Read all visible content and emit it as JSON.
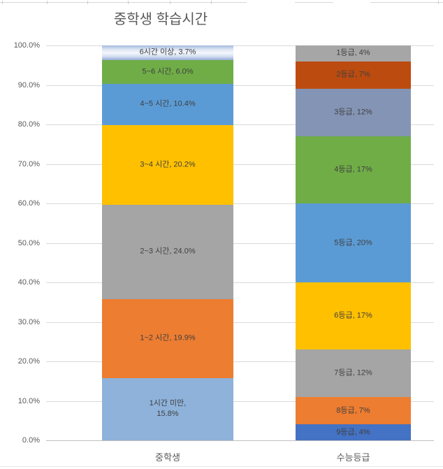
{
  "chart_data": {
    "type": "bar",
    "subtype": "stacked-100-percent-column",
    "title": "중학생 학습시간",
    "categories": [
      "중학생",
      "수능등급"
    ],
    "y_axis": {
      "min": 0,
      "max": 100,
      "step": 10,
      "tick_labels": [
        "0.0%",
        "10.0%",
        "20.0%",
        "30.0%",
        "40.0%",
        "50.0%",
        "60.0%",
        "70.0%",
        "80.0%",
        "90.0%",
        "100.0%"
      ]
    },
    "grid": "horizontal-on",
    "legend": "none",
    "bars": [
      {
        "category": "중학생",
        "segments": [
          {
            "name": "1시간 미만",
            "value": 15.8,
            "display": "1시간 미만,\n15.8%",
            "color": "#8eb2da"
          },
          {
            "name": "1~2 시간",
            "value": 19.9,
            "display": "1~2 시간, 19.9%",
            "color": "#ed7d31"
          },
          {
            "name": "2~3 시간",
            "value": 24.0,
            "display": "2~3 시간, 24.0%",
            "color": "#a5a5a5"
          },
          {
            "name": "3~4 시간",
            "value": 20.2,
            "display": "3~4 시간, 20.2%",
            "color": "#ffc000"
          },
          {
            "name": "4~5 시간",
            "value": 10.4,
            "display": "4~5 시간, 10.4%",
            "color": "#5b9bd5"
          },
          {
            "name": "5~6 시간",
            "value": 6.0,
            "display": "5~6 시간, 6.0%",
            "color": "#70ad47"
          },
          {
            "name": "6시간 이상",
            "value": 3.7,
            "display": "6시간 이상, 3.7%",
            "color": [
              "#a3b8de",
              "#d9e2f2",
              "#f4f7fc",
              "#d3def0",
              "#93a9d4"
            ]
          }
        ]
      },
      {
        "category": "수능등급",
        "segments": [
          {
            "name": "9등급",
            "value": 4,
            "display": "9등급, 4%",
            "color": "#4472c4"
          },
          {
            "name": "8등급",
            "value": 7,
            "display": "8등급, 7%",
            "color": "#ed7d31"
          },
          {
            "name": "7등급",
            "value": 12,
            "display": "7등급, 12%",
            "color": "#a5a5a5"
          },
          {
            "name": "6등급",
            "value": 17,
            "display": "6등급, 17%",
            "color": "#ffc000"
          },
          {
            "name": "5등급",
            "value": 20,
            "display": "5등급, 20%",
            "color": "#5b9bd5"
          },
          {
            "name": "4등급",
            "value": 17,
            "display": "4등급, 17%",
            "color": "#70ad47"
          },
          {
            "name": "3등급",
            "value": 12,
            "display": "3등급, 12%",
            "color": "#8494b4"
          },
          {
            "name": "2등급",
            "value": 7,
            "display": "2등급, 7%",
            "color": "#bc4b10"
          },
          {
            "name": "1등급",
            "value": 4,
            "display": "1등급, 4%",
            "color": "#a6a6a6"
          }
        ]
      }
    ],
    "colors": {
      "title_text": "#595959",
      "axis_text": "#595959",
      "data_label_text": "#3f3f3f",
      "gridline": "#d9d9d9",
      "axis_line": "#bfbfbf",
      "background": "#ffffff"
    }
  }
}
